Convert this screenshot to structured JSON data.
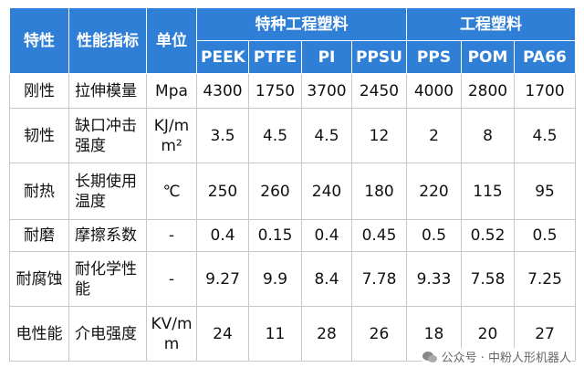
{
  "table": {
    "header": {
      "top": [
        "特性",
        "性能指标",
        "单位"
      ],
      "groups": [
        "特种工程塑料",
        "工程塑料"
      ],
      "materials": [
        "PEEK",
        "PTFE",
        "PI",
        "PPSU",
        "PPS",
        "POM",
        "PA66"
      ]
    },
    "rows": [
      [
        "刚性",
        "拉伸模量",
        "Mpa",
        "4300",
        "1750",
        "3700",
        "2450",
        "4000",
        "2800",
        "1700"
      ],
      [
        "韧性",
        "缺口冲击强度",
        "KJ/mm²",
        "3.5",
        "4.5",
        "4.5",
        "12",
        "2",
        "8",
        "4.5"
      ],
      [
        "耐热",
        "长期使用温度",
        "℃",
        "250",
        "260",
        "240",
        "180",
        "220",
        "115",
        "95"
      ],
      [
        "耐磨",
        "摩擦系数",
        "-",
        "0.4",
        "0.15",
        "0.4",
        "0.45",
        "0.5",
        "0.52",
        "0.5"
      ],
      [
        "耐腐蚀",
        "耐化学性能",
        "-",
        "9.27",
        "9.9",
        "8.4",
        "7.78",
        "9.33",
        "7.58",
        "7.25"
      ],
      [
        "电性能",
        "介电强度",
        "KV/mm",
        "24",
        "11",
        "28",
        "26",
        "18",
        "20",
        "27"
      ]
    ]
  },
  "watermark": "公众号 · 中粉人形机器人"
}
